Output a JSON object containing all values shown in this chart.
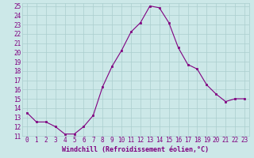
{
  "x": [
    0,
    1,
    2,
    3,
    4,
    5,
    6,
    7,
    8,
    9,
    10,
    11,
    12,
    13,
    14,
    15,
    16,
    17,
    18,
    19,
    20,
    21,
    22,
    23
  ],
  "y": [
    13.5,
    12.5,
    12.5,
    12.0,
    11.2,
    11.2,
    12.0,
    13.2,
    16.3,
    18.5,
    20.2,
    22.2,
    23.2,
    25.0,
    24.8,
    23.2,
    20.5,
    18.7,
    18.2,
    16.5,
    15.5,
    14.7,
    15.0,
    15.0
  ],
  "xlabel": "Windchill (Refroidissement éolien,°C)",
  "ylim": [
    11,
    25
  ],
  "xlim": [
    -0.5,
    23.5
  ],
  "yticks": [
    11,
    12,
    13,
    14,
    15,
    16,
    17,
    18,
    19,
    20,
    21,
    22,
    23,
    24,
    25
  ],
  "xticks": [
    0,
    1,
    2,
    3,
    4,
    5,
    6,
    7,
    8,
    9,
    10,
    11,
    12,
    13,
    14,
    15,
    16,
    17,
    18,
    19,
    20,
    21,
    22,
    23
  ],
  "line_color": "#800080",
  "marker_color": "#800080",
  "bg_color": "#cce8e8",
  "grid_color": "#aacece",
  "tick_color": "#800080",
  "label_color": "#800080",
  "tick_fontsize": 5.5,
  "xlabel_fontsize": 6.0
}
